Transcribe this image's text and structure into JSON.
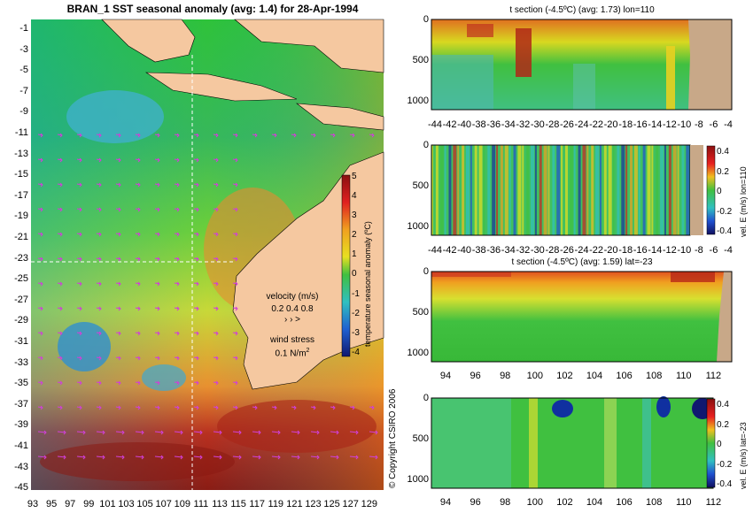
{
  "map": {
    "title": "BRAN_1 SST seasonal anomaly (avg: 1.4) for 28-Apr-1994",
    "lat_labels": [
      "-1",
      "-3",
      "-5",
      "-7",
      "-9",
      "-11",
      "-13",
      "-15",
      "-17",
      "-19",
      "-21",
      "-23",
      "-25",
      "-27",
      "-29",
      "-31",
      "-33",
      "-35",
      "-37",
      "-39",
      "-41",
      "-43",
      "-45"
    ],
    "lon_labels": [
      "93",
      "95",
      "97",
      "99",
      "101",
      "103",
      "105",
      "107",
      "109",
      "111",
      "113",
      "115",
      "117",
      "119",
      "121",
      "123",
      "125",
      "127",
      "129"
    ],
    "colorbar": {
      "label": "temperature seasonal anomaly (ºC)",
      "ticks": [
        "5",
        "4",
        "3",
        "2",
        "1",
        "0",
        "-1",
        "-2",
        "-3",
        "-4"
      ]
    },
    "velocity_legend": {
      "title": "velocity (m/s)",
      "values": "0.2 0.4 0.8",
      "arrows": "› ›  >",
      "wind_title": "wind stress",
      "wind_value": "0.1 N/m",
      "wind_sup": "2"
    },
    "copyright": "© Copyright CSIRO 2006",
    "colors": {
      "land": "#f5c8a0",
      "arrows": "#d040d8",
      "crosshair": "#ffffff"
    }
  },
  "panels": {
    "p1": {
      "title": "t section (-4.5ºC) (avg: 1.73) lon=110",
      "depth_ticks": [
        "0",
        "500",
        "1000"
      ],
      "x_ticks": [
        "-44",
        "-42",
        "-40",
        "-38",
        "-36",
        "-34",
        "-32",
        "-30",
        "-28",
        "-26",
        "-24",
        "-22",
        "-20",
        "-18",
        "-16",
        "-14",
        "-12",
        "-10",
        "-8",
        "-6",
        "-4"
      ]
    },
    "p2": {
      "depth_ticks": [
        "0",
        "500",
        "1000"
      ],
      "x_ticks": [
        "-44",
        "-42",
        "-40",
        "-38",
        "-36",
        "-34",
        "-32",
        "-30",
        "-28",
        "-26",
        "-24",
        "-22",
        "-20",
        "-18",
        "-16",
        "-14",
        "-12",
        "-10",
        "-8",
        "-6",
        "-4"
      ],
      "cbar_ticks": [
        "0.4",
        "0.2",
        "0",
        "-0.2",
        "-0.4"
      ],
      "cbar_label": "vel. E (m/s) lon=110"
    },
    "p3": {
      "title": "t section (-4.5ºC) (avg: 1.59) lat=-23",
      "depth_ticks": [
        "0",
        "500",
        "1000"
      ],
      "x_ticks": [
        "94",
        "96",
        "98",
        "100",
        "102",
        "104",
        "106",
        "108",
        "110",
        "112"
      ]
    },
    "p4": {
      "depth_ticks": [
        "0",
        "500",
        "1000"
      ],
      "x_ticks": [
        "94",
        "96",
        "98",
        "100",
        "102",
        "104",
        "106",
        "108",
        "110",
        "112"
      ],
      "cbar_ticks": [
        "0.4",
        "0.2",
        "0",
        "-0.2",
        "-0.4"
      ],
      "cbar_label": "vel. E (m/s) lat=-23"
    }
  }
}
